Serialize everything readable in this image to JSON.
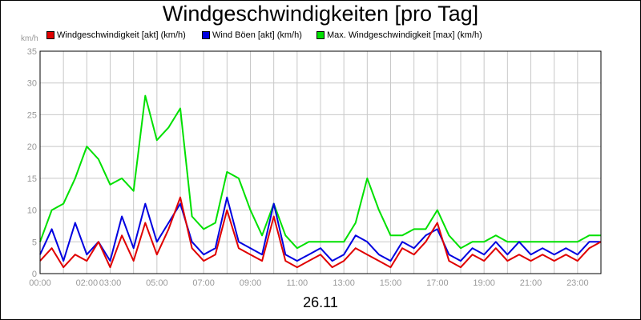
{
  "chart_data": {
    "type": "line",
    "title": "Windgeschwindigkeiten [pro Tag]",
    "xlabel": "26.11",
    "ylabel": "km/h",
    "ylim": [
      0,
      35
    ],
    "yticks": [
      "0",
      "5",
      "10",
      "15",
      "20",
      "25",
      "30",
      "35"
    ],
    "xlim_hours": [
      0,
      24
    ],
    "xtick_labels": [
      "00:00",
      "02:00",
      "03:00",
      "05:00",
      "07:00",
      "09:00",
      "11:00",
      "13:00",
      "15:00",
      "17:00",
      "19:00",
      "21:00",
      "23:00"
    ],
    "xtick_hours": [
      0,
      2,
      3,
      5,
      7,
      9,
      11,
      13,
      15,
      17,
      19,
      21,
      23
    ],
    "grid": true,
    "legend_position": "top",
    "series": [
      {
        "name": "Windgeschwindigkeit [akt] (km/h)",
        "color": "#e00000",
        "x_hours": [
          0,
          0.5,
          1,
          1.5,
          2,
          2.5,
          3,
          3.5,
          4,
          4.5,
          5,
          5.5,
          6,
          6.5,
          7,
          7.5,
          8,
          8.5,
          9,
          9.5,
          10,
          10.5,
          11,
          11.5,
          12,
          12.5,
          13,
          13.5,
          14,
          14.5,
          15,
          15.5,
          16,
          16.5,
          17,
          17.5,
          18,
          18.5,
          19,
          19.5,
          20,
          20.5,
          21,
          21.5,
          22,
          22.5,
          23,
          23.5,
          24
        ],
        "values": [
          2,
          4,
          1,
          3,
          2,
          5,
          1,
          6,
          2,
          8,
          3,
          7,
          12,
          4,
          2,
          3,
          10,
          4,
          3,
          2,
          9,
          2,
          1,
          2,
          3,
          1,
          2,
          4,
          3,
          2,
          1,
          4,
          3,
          5,
          8,
          2,
          1,
          3,
          2,
          4,
          2,
          3,
          2,
          3,
          2,
          3,
          2,
          4,
          5
        ]
      },
      {
        "name": "Wind Böen [akt] (km/h)",
        "color": "#0000e0",
        "x_hours": [
          0,
          0.5,
          1,
          1.5,
          2,
          2.5,
          3,
          3.5,
          4,
          4.5,
          5,
          5.5,
          6,
          6.5,
          7,
          7.5,
          8,
          8.5,
          9,
          9.5,
          10,
          10.5,
          11,
          11.5,
          12,
          12.5,
          13,
          13.5,
          14,
          14.5,
          15,
          15.5,
          16,
          16.5,
          17,
          17.5,
          18,
          18.5,
          19,
          19.5,
          20,
          20.5,
          21,
          21.5,
          22,
          22.5,
          23,
          23.5,
          24
        ],
        "values": [
          3,
          7,
          2,
          8,
          3,
          5,
          2,
          9,
          4,
          11,
          5,
          8,
          11,
          5,
          3,
          4,
          12,
          5,
          4,
          3,
          11,
          3,
          2,
          3,
          4,
          2,
          3,
          6,
          5,
          3,
          2,
          5,
          4,
          6,
          7,
          3,
          2,
          4,
          3,
          5,
          3,
          5,
          3,
          4,
          3,
          4,
          3,
          5,
          5
        ]
      },
      {
        "name": "Max. Windgeschwindigkeit [max] (km/h)",
        "color": "#00e000",
        "x_hours": [
          0,
          0.5,
          1,
          1.5,
          2,
          2.5,
          3,
          3.5,
          4,
          4.5,
          5,
          5.5,
          6,
          6.5,
          7,
          7.5,
          8,
          8.5,
          9,
          9.5,
          10,
          10.5,
          11,
          11.5,
          12,
          12.5,
          13,
          13.5,
          14,
          14.5,
          15,
          15.5,
          16,
          16.5,
          17,
          17.5,
          18,
          18.5,
          19,
          19.5,
          20,
          20.5,
          21,
          21.5,
          22,
          22.5,
          23,
          23.5,
          24
        ],
        "values": [
          5,
          10,
          11,
          15,
          20,
          18,
          14,
          15,
          13,
          28,
          21,
          23,
          26,
          9,
          7,
          8,
          16,
          15,
          10,
          6,
          11,
          6,
          4,
          5,
          5,
          5,
          5,
          8,
          15,
          10,
          6,
          6,
          7,
          7,
          10,
          6,
          4,
          5,
          5,
          6,
          5,
          5,
          5,
          5,
          5,
          5,
          5,
          6,
          6
        ]
      }
    ]
  }
}
